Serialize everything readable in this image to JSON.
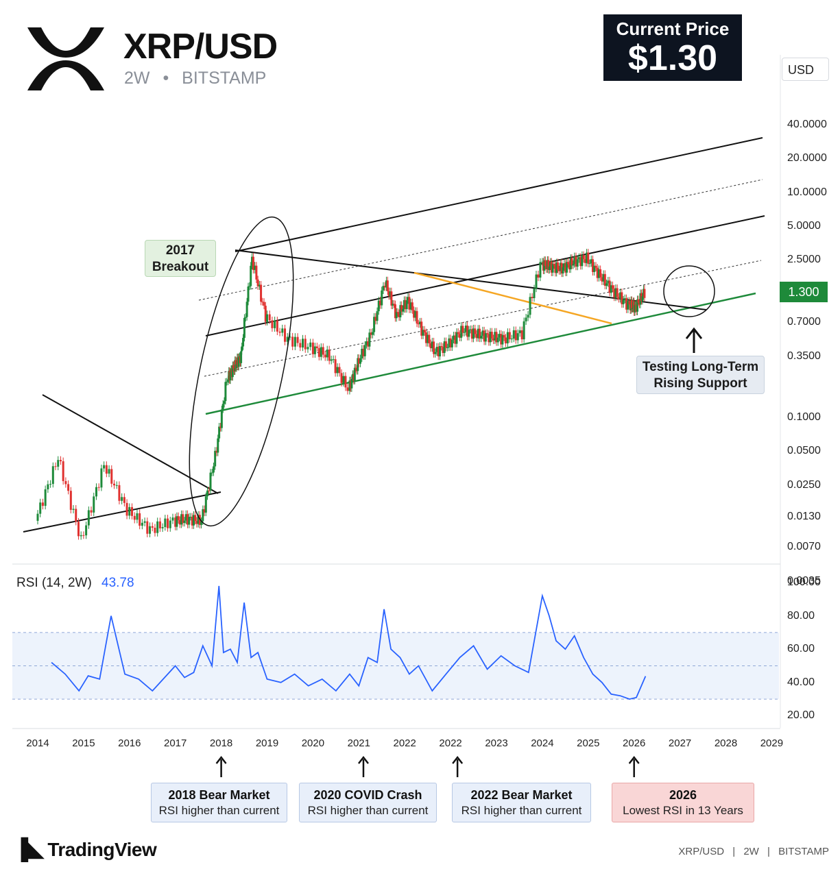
{
  "header": {
    "symbol": "XRP/USD",
    "interval": "2W",
    "separator": "•",
    "exchange": "BITSTAMP",
    "logo_icon": "xrp-x-icon"
  },
  "current_price": {
    "label": "Current Price",
    "value": "$1.30"
  },
  "currency_selector": "USD",
  "last_price_tag": "1.300",
  "callouts": {
    "breakout": "2017 Breakout",
    "support": "Testing Long-Term Rising Support"
  },
  "rsi": {
    "label": "RSI (14, 2W)",
    "value": "43.78"
  },
  "notes": [
    {
      "title": "2018 Bear Market",
      "sub": "RSI higher than current",
      "year": 2018.0
    },
    {
      "title": "2020 COVID Crash",
      "sub": "RSI higher than current",
      "year": 2021.1
    },
    {
      "title": "2022 Bear Market",
      "sub": "RSI higher than current",
      "year": 2023.15
    },
    {
      "title": "2026",
      "sub": "Lowest RSI in 13 Years",
      "year": 2027.0
    }
  ],
  "footer": {
    "brand": "TradingView",
    "symbol": "XRP/USD",
    "interval": "2W",
    "exchange": "BITSTAMP",
    "sep": "|"
  },
  "colors": {
    "bullish": "#1e8a3a",
    "bearish": "#e0312f",
    "rsi_line": "#2962ff",
    "support_line": "#1e8a3a",
    "orange_line": "#f5a623",
    "rsi_band": "#edf3fc"
  },
  "chart_data": [
    {
      "type": "candlestick",
      "scale": "log",
      "y_ticks": [
        "40.0000",
        "20.0000",
        "10.0000",
        "5.0000",
        "2.5000",
        "0.7000",
        "0.3500",
        "0.1000",
        "0.0500",
        "0.0250",
        "0.0130",
        "0.0070",
        "0.0035"
      ],
      "x_ticks": [
        "2014",
        "2015",
        "2016",
        "2017",
        "2018",
        "2019",
        "2020",
        "2021",
        "2022",
        "2022",
        "2023",
        "2024",
        "2025",
        "2026",
        "2027",
        "2028",
        "2029"
      ],
      "series": [
        {
          "name": "XRP/USD",
          "x": [
            2014.0,
            2014.5,
            2015.0,
            2015.5,
            2016.0,
            2016.5,
            2017.0,
            2017.3,
            2017.6,
            2017.9,
            2018.15,
            2018.3,
            2018.45,
            2018.7,
            2019.0,
            2019.5,
            2020.0,
            2020.4,
            2020.8,
            2021.0,
            2021.3,
            2021.6,
            2021.85,
            2022.1,
            2022.4,
            2022.7,
            2023.0,
            2023.3,
            2023.6,
            2023.9,
            2024.2,
            2024.6,
            2025.0,
            2025.2,
            2025.45,
            2025.7,
            2026.0,
            2026.3,
            2026.6,
            2026.9,
            2027.05,
            2027.25
          ],
          "close": [
            0.012,
            0.044,
            0.008,
            0.038,
            0.015,
            0.01,
            0.012,
            0.0125,
            0.012,
            0.045,
            0.22,
            0.28,
            0.35,
            2.6,
            0.8,
            0.5,
            0.42,
            0.35,
            0.18,
            0.3,
            0.55,
            1.6,
            0.8,
            1.1,
            0.6,
            0.38,
            0.45,
            0.6,
            0.55,
            0.52,
            0.5,
            0.56,
            2.3,
            2.2,
            2.1,
            2.4,
            2.6,
            1.8,
            1.3,
            1.0,
            0.95,
            1.3
          ]
        }
      ],
      "trendlines": [
        "Rising channel upper",
        "Rising channel middle",
        "Long-term rising support",
        "Descending trendline",
        "Orange wedge resistance"
      ]
    },
    {
      "type": "line",
      "title": "RSI (14, 2W)",
      "y_ticks": [
        "100.00",
        "80.00",
        "60.00",
        "40.00",
        "20.00"
      ],
      "ylim": [
        20,
        100
      ],
      "bands": [
        30,
        50,
        70
      ],
      "series": [
        {
          "name": "RSI",
          "x": [
            2014.3,
            2014.6,
            2014.9,
            2015.1,
            2015.35,
            2015.6,
            2015.9,
            2016.2,
            2016.5,
            2016.8,
            2017.0,
            2017.2,
            2017.4,
            2017.6,
            2017.8,
            2017.95,
            2018.05,
            2018.2,
            2018.35,
            2018.5,
            2018.65,
            2018.8,
            2019.0,
            2019.3,
            2019.6,
            2019.9,
            2020.2,
            2020.5,
            2020.8,
            2021.0,
            2021.2,
            2021.4,
            2021.55,
            2021.7,
            2021.9,
            2022.1,
            2022.3,
            2022.6,
            2022.9,
            2023.2,
            2023.5,
            2023.8,
            2024.1,
            2024.4,
            2024.7,
            2025.0,
            2025.15,
            2025.3,
            2025.5,
            2025.7,
            2025.9,
            2026.1,
            2026.3,
            2026.5,
            2026.7,
            2026.9,
            2027.05,
            2027.25
          ],
          "values": [
            52,
            45,
            35,
            44,
            42,
            80,
            45,
            42,
            35,
            44,
            50,
            43,
            46,
            62,
            50,
            98,
            58,
            60,
            52,
            88,
            55,
            58,
            42,
            40,
            45,
            38,
            42,
            35,
            45,
            38,
            55,
            52,
            84,
            60,
            55,
            45,
            50,
            35,
            45,
            55,
            62,
            48,
            56,
            50,
            46,
            92,
            80,
            65,
            60,
            68,
            55,
            45,
            40,
            33,
            32,
            30,
            31,
            43.78
          ]
        }
      ]
    }
  ]
}
